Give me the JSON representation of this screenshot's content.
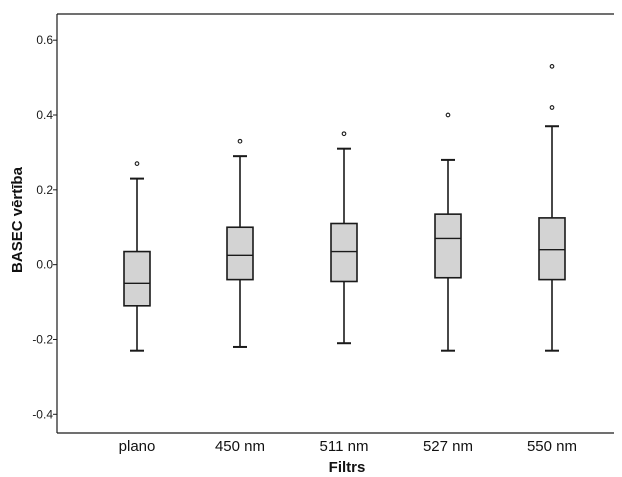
{
  "chart_data": {
    "type": "boxplot",
    "xlabel": "Filtrs",
    "ylabel": "BASEC vērtība",
    "ylim": [
      -0.45,
      0.67
    ],
    "yticks": [
      -0.4,
      -0.2,
      0.0,
      0.2,
      0.4,
      0.6
    ],
    "ytick_labels": [
      "-0.4",
      "-0.2",
      "0.0",
      "0.2",
      "0.4",
      "0.6"
    ],
    "categories": [
      "plano",
      "450 nm",
      "511 nm",
      "527 nm",
      "550 nm"
    ],
    "boxes": [
      {
        "category": "plano",
        "whisker_low": -0.23,
        "q1": -0.11,
        "median": -0.05,
        "q3": 0.035,
        "whisker_high": 0.23,
        "outliers": [
          0.27
        ]
      },
      {
        "category": "450 nm",
        "whisker_low": -0.22,
        "q1": -0.04,
        "median": 0.025,
        "q3": 0.1,
        "whisker_high": 0.29,
        "outliers": [
          0.33
        ]
      },
      {
        "category": "511 nm",
        "whisker_low": -0.21,
        "q1": -0.045,
        "median": 0.035,
        "q3": 0.11,
        "whisker_high": 0.31,
        "outliers": [
          0.35
        ]
      },
      {
        "category": "527 nm",
        "whisker_low": -0.23,
        "q1": -0.035,
        "median": 0.07,
        "q3": 0.135,
        "whisker_high": 0.28,
        "outliers": [
          0.4
        ]
      },
      {
        "category": "550 nm",
        "whisker_low": -0.23,
        "q1": -0.04,
        "median": 0.04,
        "q3": 0.125,
        "whisker_high": 0.37,
        "outliers": [
          0.42,
          0.53
        ]
      }
    ],
    "grid": false,
    "colors": {
      "box_fill": "#d3d3d3",
      "stroke": "#1a1a1a",
      "background": "#ffffff"
    }
  }
}
